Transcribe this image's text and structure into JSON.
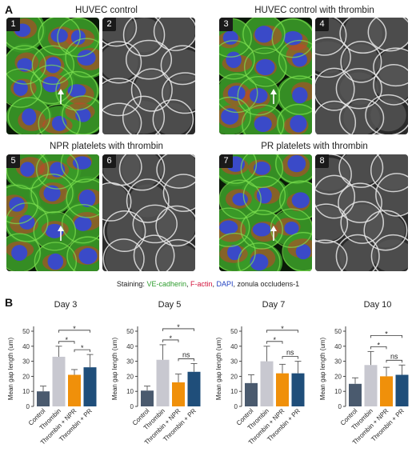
{
  "figure": {
    "panel_a_label": "A",
    "panel_b_label": "B",
    "groups": [
      {
        "title": "HUVEC control",
        "images": [
          "1",
          "2"
        ]
      },
      {
        "title": "HUVEC control with thrombin",
        "images": [
          "3",
          "4"
        ]
      },
      {
        "title": "NPR platelets with thrombin",
        "images": [
          "5",
          "6"
        ]
      },
      {
        "title": "PR platelets with thrombin",
        "images": [
          "7",
          "8"
        ]
      }
    ],
    "staining": {
      "prefix": "Staining: ",
      "ve": "VE-cadherin",
      "sep1": ", ",
      "factin": "F-actin",
      "sep2": ", ",
      "dapi": "DAPI",
      "suffix": ", zonula occludens-1"
    },
    "colors": {
      "ve": "#2e9d2e",
      "factin": "#d2143c",
      "dapi": "#2040c0",
      "control": "#4a5a6e",
      "thrombin": "#c8c8d0",
      "npr": "#f0900a",
      "pr": "#1f4e7a"
    }
  },
  "chart_data": [
    {
      "type": "bar",
      "title": "Day 3",
      "ylabel": "Mean gap length (um)",
      "ylim": [
        0,
        50
      ],
      "yticks": [
        0,
        10,
        20,
        30,
        40,
        50
      ],
      "categories": [
        "Control",
        "Thrombin",
        "Thrombin + NPR",
        "Thrombin + PR"
      ],
      "values": [
        10,
        33,
        21,
        26
      ],
      "errors": [
        3.5,
        7,
        3.5,
        8.5
      ],
      "comparisons": [
        {
          "a": 1,
          "b": 2,
          "label": "*"
        },
        {
          "a": 1,
          "b": 3,
          "label": "*"
        },
        {
          "a": 2,
          "b": 3,
          "label": "*"
        }
      ]
    },
    {
      "type": "bar",
      "title": "Day 5",
      "ylabel": "Mean gap length (um)",
      "ylim": [
        0,
        50
      ],
      "yticks": [
        0,
        10,
        20,
        30,
        40,
        50
      ],
      "categories": [
        "Control",
        "Thrombin",
        "Thrombin + NPR",
        "Thrombin + PR"
      ],
      "values": [
        10.5,
        31,
        16,
        23
      ],
      "errors": [
        3,
        10,
        5.5,
        5.5
      ],
      "comparisons": [
        {
          "a": 1,
          "b": 2,
          "label": "*"
        },
        {
          "a": 1,
          "b": 3,
          "label": "*"
        },
        {
          "a": 2,
          "b": 3,
          "label": "ns"
        }
      ]
    },
    {
      "type": "bar",
      "title": "Day 7",
      "ylabel": "Mean gap length (um)",
      "ylim": [
        0,
        50
      ],
      "yticks": [
        0,
        10,
        20,
        30,
        40,
        50
      ],
      "categories": [
        "Control",
        "Thrombin",
        "Thrombin + NPR",
        "Thrombin + PR"
      ],
      "values": [
        15.5,
        30,
        22,
        22
      ],
      "errors": [
        5.5,
        10,
        6,
        8
      ],
      "comparisons": [
        {
          "a": 1,
          "b": 2,
          "label": "*"
        },
        {
          "a": 1,
          "b": 3,
          "label": "*"
        },
        {
          "a": 2,
          "b": 3,
          "label": "ns"
        }
      ]
    },
    {
      "type": "bar",
      "title": "Day 10",
      "ylabel": "Mean gap length (um)",
      "ylim": [
        0,
        50
      ],
      "yticks": [
        0,
        10,
        20,
        30,
        40,
        50
      ],
      "categories": [
        "Control",
        "Thrombin",
        "Thrombin + NPR",
        "Thrombin + PR"
      ],
      "values": [
        15,
        27.5,
        20,
        21
      ],
      "errors": [
        4,
        9,
        6,
        6.5
      ],
      "comparisons": [
        {
          "a": 1,
          "b": 2,
          "label": "*"
        },
        {
          "a": 1,
          "b": 3,
          "label": "*"
        },
        {
          "a": 2,
          "b": 3,
          "label": "ns"
        }
      ]
    }
  ]
}
